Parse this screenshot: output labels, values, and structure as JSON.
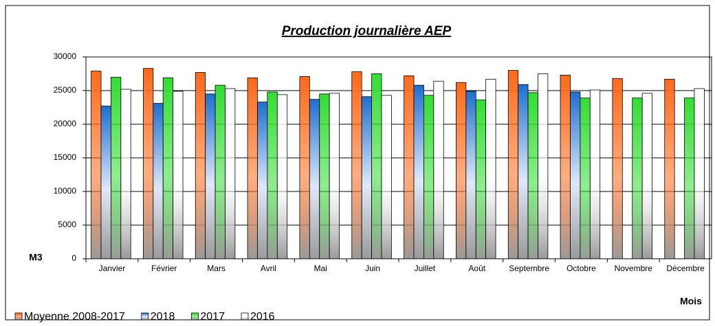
{
  "chart_data": {
    "type": "bar",
    "title": "Production journalière AEP",
    "y_label": "M3",
    "x_label": "Mois",
    "categories": [
      "Janvier",
      "Février",
      "Mars",
      "Avril",
      "Mai",
      "Juin",
      "Juillet",
      "Août",
      "Septembre",
      "Octobre",
      "Novembre",
      "Décembre"
    ],
    "series": [
      {
        "name": "Moyenne 2008-2017",
        "color": "#ff6a1a",
        "values": [
          27900,
          28300,
          27700,
          26900,
          27100,
          27800,
          27200,
          26200,
          28000,
          27300,
          26800,
          26700
        ]
      },
      {
        "name": "2018",
        "color": "#1f6fd0",
        "values": [
          22700,
          23100,
          24500,
          23300,
          23700,
          24100,
          25800,
          24900,
          25900,
          24800,
          null,
          null
        ]
      },
      {
        "name": "2017",
        "color": "#33dd33",
        "values": [
          27000,
          26900,
          25800,
          24800,
          24500,
          27500,
          24300,
          23600,
          24700,
          23900,
          23900,
          23900
        ]
      },
      {
        "name": "2016",
        "color": "#ffffff",
        "values": [
          25200,
          24900,
          25300,
          24400,
          24600,
          24300,
          26400,
          26700,
          27500,
          25100,
          24600,
          25300
        ]
      }
    ],
    "ylim": [
      0,
      30000
    ],
    "yticks": [
      0,
      5000,
      10000,
      15000,
      20000,
      25000,
      30000
    ],
    "grid": true,
    "legend": "bottom"
  }
}
